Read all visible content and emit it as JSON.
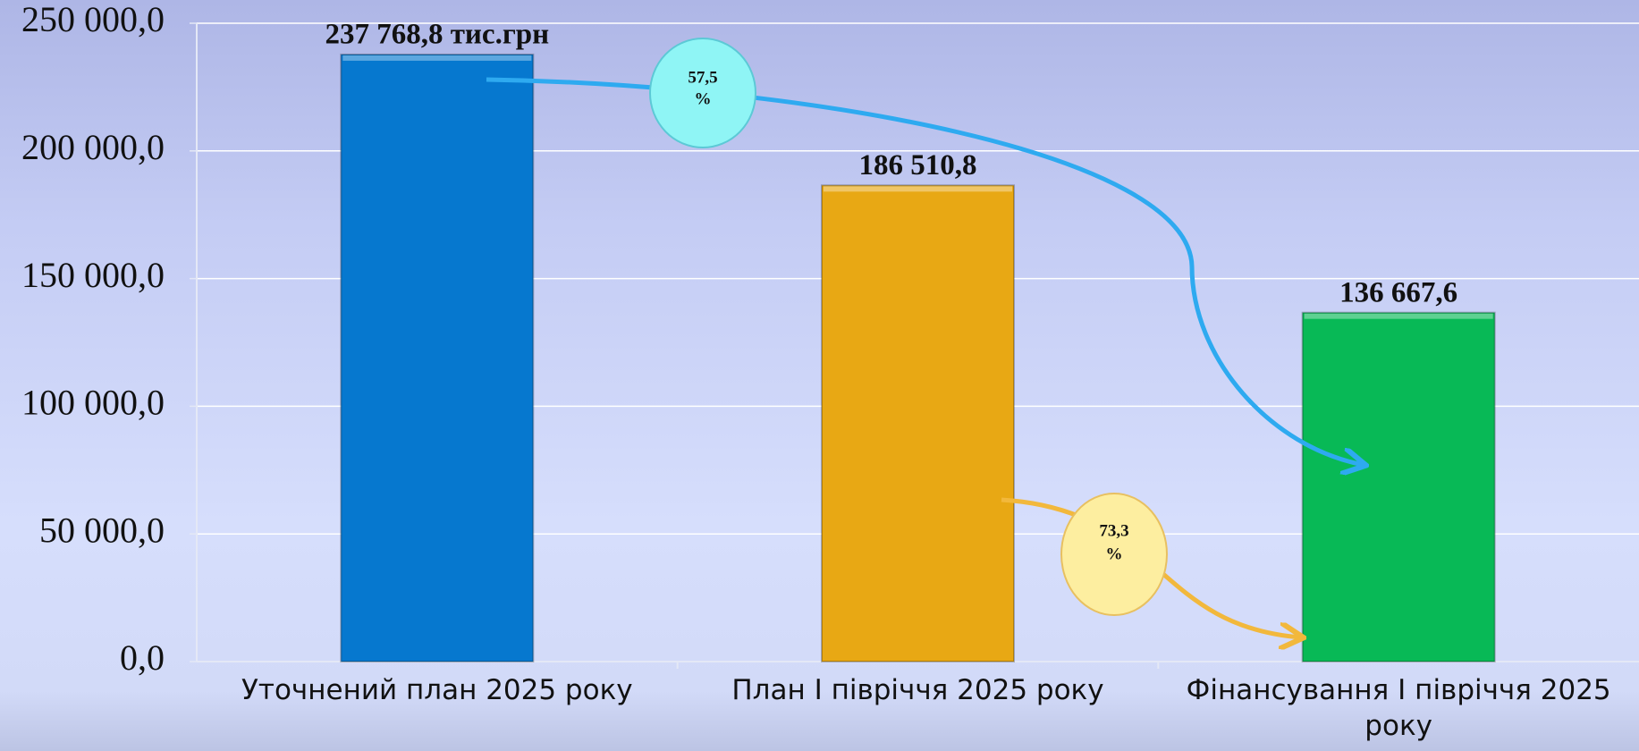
{
  "chart_data": {
    "type": "bar",
    "categories": [
      "Уточнений план 2025 року",
      "План І півріччя 2025 року",
      "Фінансування І півріччя 2025 року"
    ],
    "values": [
      237768.8,
      186510.8,
      136667.6
    ],
    "value_labels": [
      "237 768,8 тис.грн",
      "186 510,8",
      "136 667,6"
    ],
    "colors": [
      "#0678cf",
      "#e8a814",
      "#08b956"
    ],
    "ylim": [
      0,
      250000
    ],
    "yticks": [
      {
        "value": 0,
        "label": "0,0"
      },
      {
        "value": 50000,
        "label": "50 000,0"
      },
      {
        "value": 100000,
        "label": "100 000,0"
      },
      {
        "value": 150000,
        "label": "150 000,0"
      },
      {
        "value": 200000,
        "label": "200 000,0"
      },
      {
        "value": 250000,
        "label": "250 000,0"
      }
    ],
    "grid": true,
    "annotations": [
      {
        "lines": [
          "57,5",
          "%"
        ]
      },
      {
        "lines": [
          "73,3",
          "%"
        ]
      }
    ]
  }
}
